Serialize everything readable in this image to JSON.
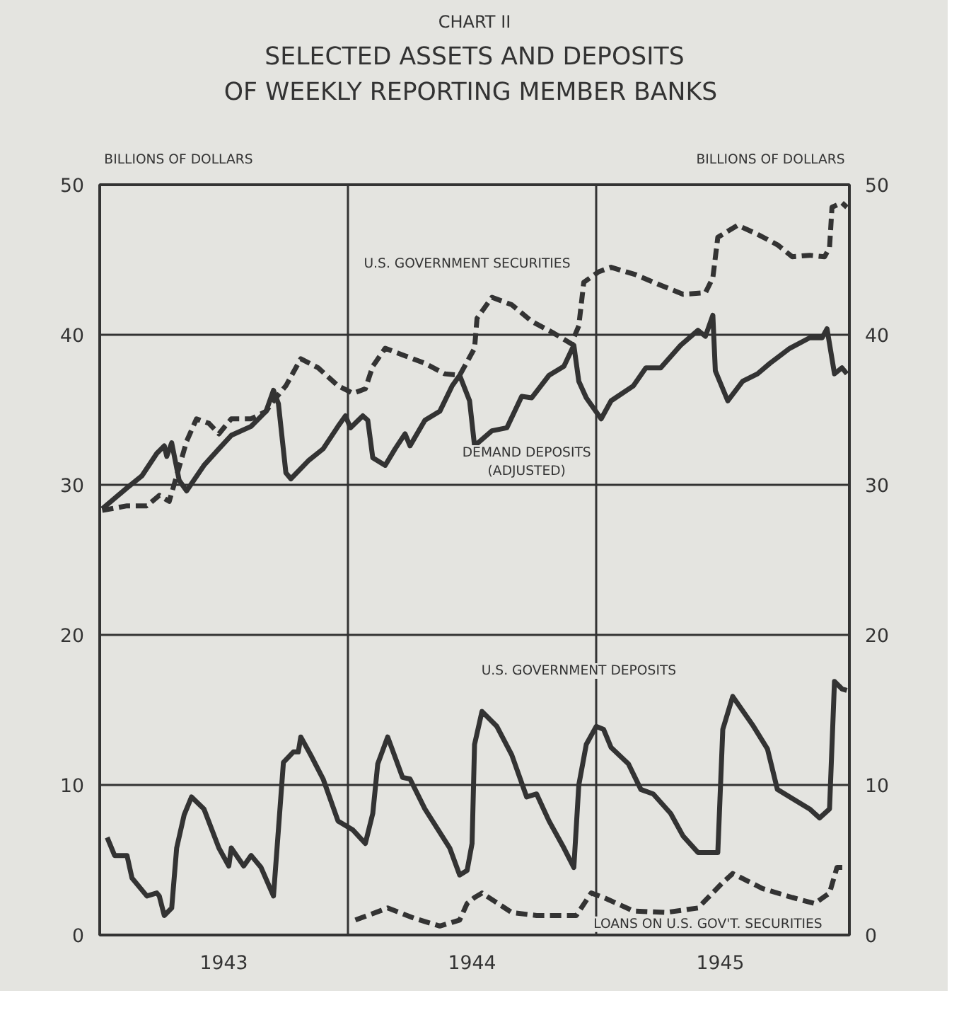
{
  "chart_data": {
    "type": "line",
    "subtitle": "CHART II",
    "title": "SELECTED ASSETS AND DEPOSITS\nOF WEEKLY REPORTING  MEMBER BANKS",
    "ylabel": "BILLIONS OF DOLLARS",
    "y2label": "BILLIONS OF DOLLARS",
    "xlim": [
      1943,
      1946.02
    ],
    "xticks": [
      {
        "value": 1943.5,
        "label": "1943"
      },
      {
        "value": 1944.5,
        "label": "1944"
      },
      {
        "value": 1945.5,
        "label": "1945"
      }
    ],
    "ylim": [
      0,
      50
    ],
    "yticks": [
      0,
      10,
      20,
      30,
      40,
      50
    ],
    "y2lim": [
      0,
      50
    ],
    "y2ticks": [
      0,
      10,
      20,
      30,
      40,
      50
    ],
    "grid": "y",
    "legend": false,
    "marker": "none",
    "ref_lines": [
      {
        "axis": "x",
        "value": 1944,
        "label": null
      },
      {
        "axis": "x",
        "value": 1945,
        "label": null
      }
    ],
    "series": [
      {
        "name": "U.S. GOVERNMENT SECURITIES",
        "color": "#333333",
        "line_style": "dashed",
        "x": [
          1943.01,
          1943.11,
          1943.19,
          1943.24,
          1943.28,
          1943.31,
          1943.35,
          1943.39,
          1943.44,
          1943.48,
          1943.53,
          1943.61,
          1943.67,
          1943.7,
          1943.75,
          1943.81,
          1943.88,
          1943.96,
          1944.02,
          1944.07,
          1944.1,
          1944.15,
          1944.23,
          1944.31,
          1944.39,
          1944.45,
          1944.51,
          1944.52,
          1944.58,
          1944.66,
          1944.74,
          1944.83,
          1944.9,
          1944.93,
          1944.95,
          1945.01,
          1945.06,
          1945.16,
          1945.26,
          1945.35,
          1945.44,
          1945.47,
          1945.49,
          1945.57,
          1945.65,
          1945.73,
          1945.79,
          1945.86,
          1945.92,
          1945.94,
          1945.95,
          1945.99,
          1946.01
        ],
        "values": [
          28.3,
          28.6,
          28.6,
          29.3,
          28.9,
          30.6,
          32.9,
          34.4,
          34.1,
          33.4,
          34.4,
          34.4,
          34.9,
          35.6,
          36.6,
          38.4,
          37.8,
          36.6,
          36.1,
          36.4,
          37.9,
          39.1,
          38.6,
          38.1,
          37.4,
          37.3,
          39.1,
          41.1,
          42.5,
          42.0,
          40.9,
          40.1,
          39.4,
          40.6,
          43.5,
          44.2,
          44.5,
          44.0,
          43.3,
          42.7,
          42.8,
          43.8,
          46.5,
          47.3,
          46.7,
          46.0,
          45.2,
          45.3,
          45.2,
          45.8,
          48.5,
          48.8,
          48.5
        ]
      },
      {
        "name": "DEMAND DEPOSITS\n(ADJUSTED)",
        "color": "#333333",
        "line_style": "solid",
        "x": [
          1943.01,
          1943.11,
          1943.17,
          1943.23,
          1943.26,
          1943.27,
          1943.29,
          1943.32,
          1943.35,
          1943.42,
          1943.48,
          1943.53,
          1943.61,
          1943.67,
          1943.7,
          1943.72,
          1943.75,
          1943.77,
          1943.84,
          1943.9,
          1943.96,
          1943.99,
          1944.01,
          1944.06,
          1944.08,
          1944.1,
          1944.15,
          1944.19,
          1944.23,
          1944.25,
          1944.31,
          1944.37,
          1944.42,
          1944.45,
          1944.49,
          1944.51,
          1944.58,
          1944.64,
          1944.7,
          1944.74,
          1944.81,
          1944.87,
          1944.91,
          1944.93,
          1944.96,
          1945.02,
          1945.06,
          1945.15,
          1945.2,
          1945.26,
          1945.34,
          1945.41,
          1945.44,
          1945.47,
          1945.48,
          1945.53,
          1945.59,
          1945.65,
          1945.7,
          1945.78,
          1945.86,
          1945.91,
          1945.93,
          1945.96,
          1945.99,
          1946.01
        ],
        "values": [
          28.4,
          29.8,
          30.6,
          32.1,
          32.6,
          31.9,
          32.8,
          30.3,
          29.6,
          31.3,
          32.4,
          33.3,
          33.9,
          34.9,
          36.3,
          35.4,
          30.8,
          30.4,
          31.6,
          32.4,
          33.9,
          34.6,
          33.8,
          34.6,
          34.3,
          31.8,
          31.3,
          32.4,
          33.4,
          32.6,
          34.3,
          34.9,
          36.6,
          37.3,
          35.6,
          32.6,
          33.6,
          33.8,
          35.9,
          35.8,
          37.3,
          37.9,
          39.3,
          36.9,
          35.8,
          34.4,
          35.6,
          36.6,
          37.8,
          37.8,
          39.3,
          40.3,
          39.9,
          41.3,
          37.6,
          35.6,
          36.9,
          37.4,
          38.1,
          39.1,
          39.8,
          39.8,
          40.4,
          37.4,
          37.8,
          37.4
        ]
      },
      {
        "name": "U.S. GOVERNMENT DEPOSITS",
        "color": "#333333",
        "line_style": "solid",
        "x": [
          1943.03,
          1943.06,
          1943.11,
          1943.13,
          1943.19,
          1943.23,
          1943.24,
          1943.26,
          1943.29,
          1943.31,
          1943.34,
          1943.37,
          1943.42,
          1943.48,
          1943.52,
          1943.53,
          1943.58,
          1943.61,
          1943.65,
          1943.7,
          1943.74,
          1943.78,
          1943.8,
          1943.81,
          1943.85,
          1943.9,
          1943.96,
          1944.02,
          1944.07,
          1944.1,
          1944.12,
          1944.16,
          1944.22,
          1944.25,
          1944.31,
          1944.41,
          1944.45,
          1944.48,
          1944.5,
          1944.51,
          1944.54,
          1944.6,
          1944.66,
          1944.72,
          1944.76,
          1944.81,
          1944.87,
          1944.91,
          1944.93,
          1944.96,
          1945.0,
          1945.03,
          1945.06,
          1945.13,
          1945.18,
          1945.23,
          1945.3,
          1945.35,
          1945.41,
          1945.47,
          1945.49,
          1945.51,
          1945.55,
          1945.63,
          1945.69,
          1945.73,
          1945.8,
          1945.86,
          1945.9,
          1945.94,
          1945.96,
          1945.99,
          1946.01
        ],
        "values": [
          6.5,
          5.3,
          5.3,
          3.8,
          2.6,
          2.8,
          2.6,
          1.3,
          1.8,
          5.8,
          8.0,
          9.2,
          8.4,
          5.8,
          4.6,
          5.8,
          4.6,
          5.3,
          4.5,
          2.6,
          11.5,
          12.2,
          12.2,
          13.2,
          12.0,
          10.4,
          7.6,
          7.0,
          6.1,
          8.1,
          11.4,
          13.2,
          10.5,
          10.4,
          8.4,
          5.8,
          4.0,
          4.3,
          6.1,
          12.7,
          14.9,
          13.9,
          12.0,
          9.2,
          9.4,
          7.6,
          5.8,
          4.5,
          10.0,
          12.7,
          13.9,
          13.7,
          12.5,
          11.4,
          9.7,
          9.4,
          8.1,
          6.6,
          5.5,
          5.5,
          5.5,
          13.7,
          15.9,
          14.0,
          12.4,
          9.7,
          9.0,
          8.4,
          7.8,
          8.4,
          16.9,
          16.4,
          16.3
        ]
      },
      {
        "name": "LOANS ON U.S. GOV'T. SECURITIES",
        "color": "#333333",
        "line_style": "dashed",
        "x": [
          1944.03,
          1944.16,
          1944.27,
          1944.37,
          1944.45,
          1944.48,
          1944.51,
          1944.54,
          1944.66,
          1944.76,
          1944.92,
          1944.98,
          1945.03,
          1945.15,
          1945.28,
          1945.41,
          1945.51,
          1945.55,
          1945.67,
          1945.79,
          1945.88,
          1945.94,
          1945.97,
          1946.01
        ],
        "values": [
          1.0,
          1.8,
          1.1,
          0.6,
          1.0,
          2.1,
          2.5,
          2.8,
          1.5,
          1.3,
          1.3,
          2.8,
          2.5,
          1.6,
          1.5,
          1.8,
          3.5,
          4.1,
          3.1,
          2.5,
          2.1,
          2.8,
          4.5,
          4.5
        ]
      }
    ]
  }
}
